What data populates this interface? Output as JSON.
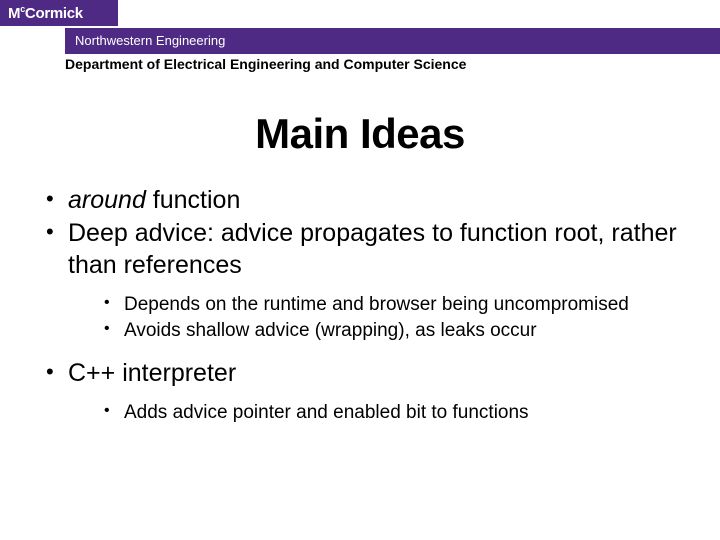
{
  "header": {
    "brand_prefix": "M",
    "brand_c": "c",
    "brand_rest": "Cormick",
    "sub_banner": "Northwestern Engineering",
    "department": "Department of Electrical Engineering and Computer Science"
  },
  "title": "Main Ideas",
  "bullets": {
    "b1_em": "around",
    "b1_rest": " function",
    "b2": "Deep advice: advice propagates to function root, rather than references",
    "b2_sub1": "Depends on the runtime and browser being uncompromised",
    "b2_sub2": "Avoids shallow advice (wrapping), as leaks occur",
    "b3": "C++ interpreter",
    "b3_sub1": "Adds advice pointer and enabled bit to functions"
  },
  "colors": {
    "purple": "#4e2a84",
    "background": "#ffffff",
    "text": "#000000"
  }
}
